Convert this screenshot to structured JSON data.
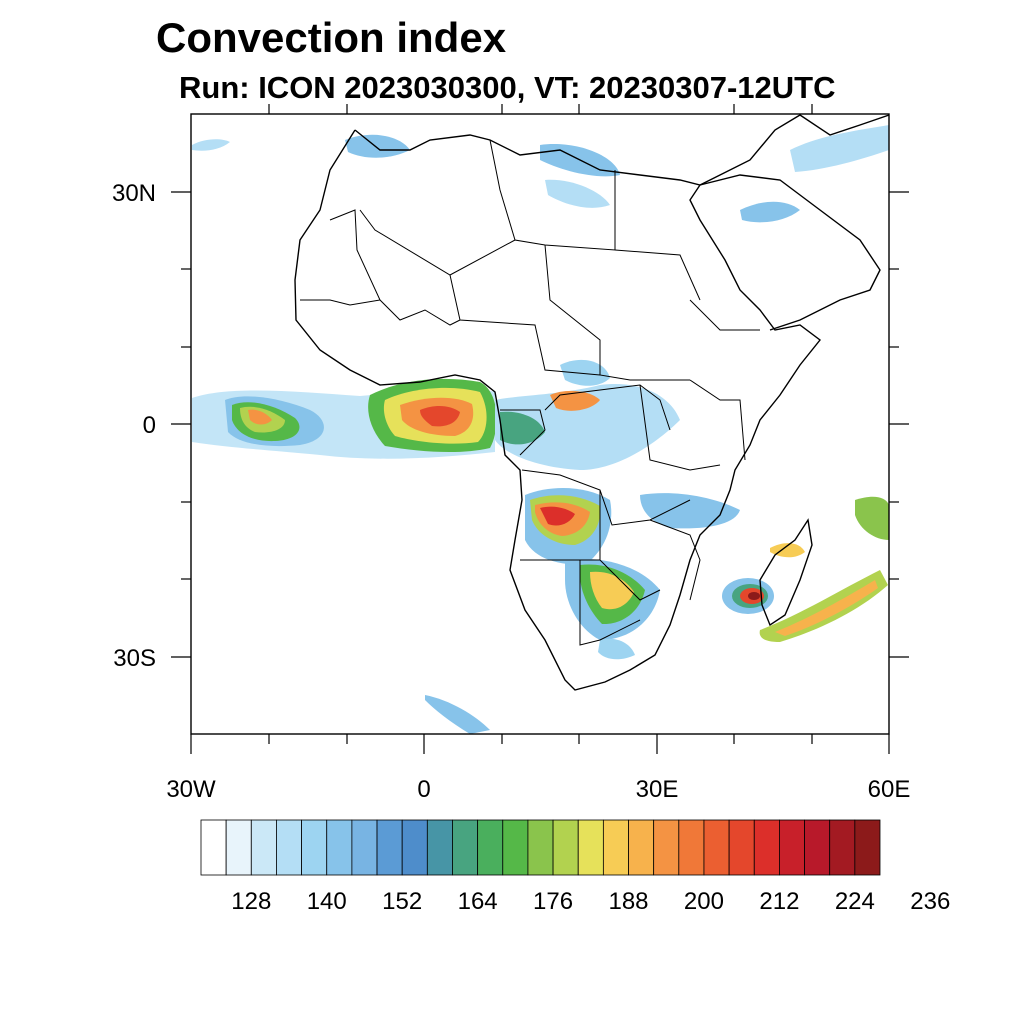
{
  "title": "Convection index",
  "subtitle": "Run: ICON 2023030300,  VT: 20230307-12UTC",
  "map": {
    "region": "Africa",
    "projection": "cylindrical equidistant",
    "lon_range": [
      -30,
      60
    ],
    "lat_range": [
      -40,
      40
    ],
    "lon_labels": [
      "30W",
      "0",
      "30E",
      "60E"
    ],
    "lat_labels": [
      "30N",
      "0",
      "30S"
    ],
    "features": [
      "convection-band-atlantic-itcz",
      "convection-gulf-of-guinea",
      "convection-congo-basin",
      "convection-angola-zambia",
      "convection-southern-africa",
      "convection-mozambique-channel-cyclone",
      "convection-east-of-madagascar"
    ]
  },
  "colorbar": {
    "tick_labels": [
      "128",
      "140",
      "152",
      "164",
      "176",
      "188",
      "200",
      "212",
      "224",
      "236"
    ],
    "colors": [
      "#ffffff",
      "#e8f4fb",
      "#cbe8f7",
      "#b4def5",
      "#9dd4f1",
      "#87c3ea",
      "#78b4e3",
      "#5b9bd5",
      "#4e8dcb",
      "#4795a6",
      "#48a480",
      "#4aaf5d",
      "#55b848",
      "#8ac44c",
      "#b2d24f",
      "#e6e15a",
      "#f7cc55",
      "#f7b24c",
      "#f49343",
      "#f07838",
      "#eb5f31",
      "#e4472c",
      "#dc2f2a",
      "#c8202a",
      "#b8192a",
      "#a31a22",
      "#8c1a1a"
    ]
  }
}
